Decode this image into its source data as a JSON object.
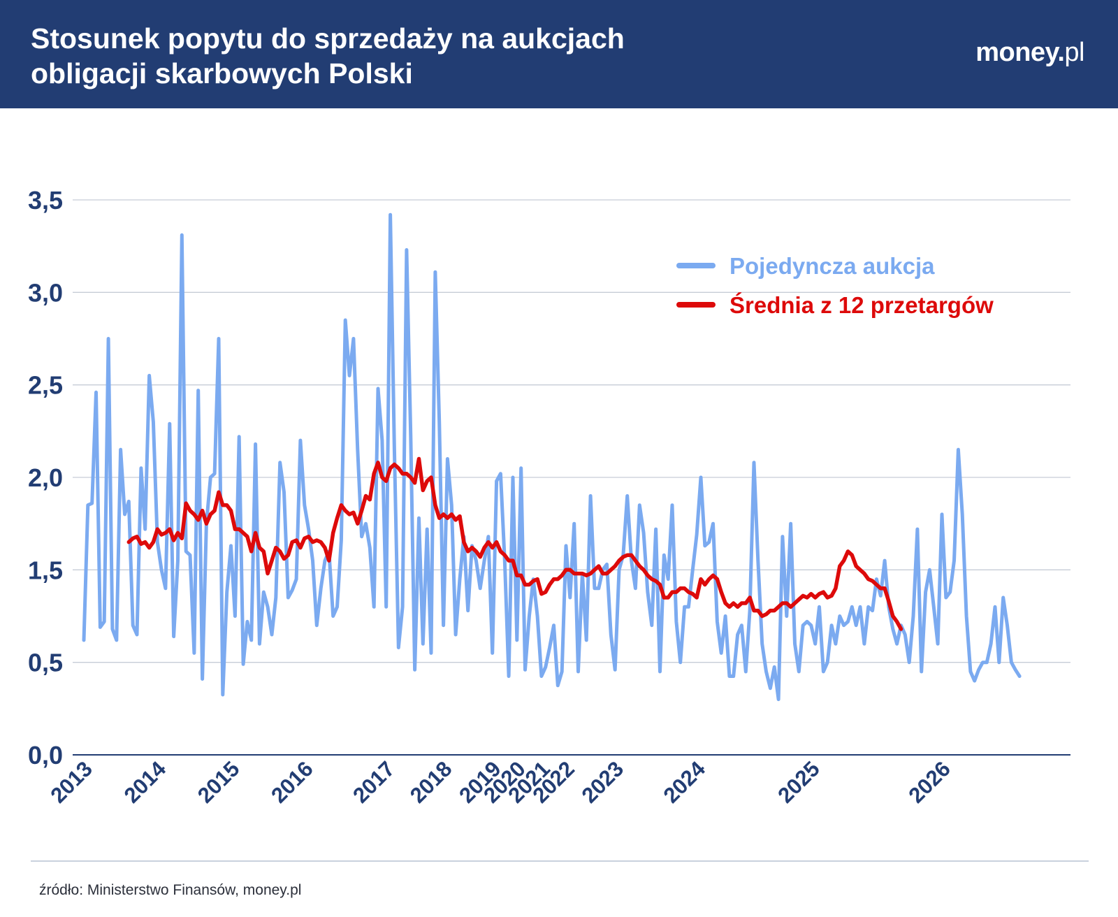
{
  "header": {
    "title_line1": "Stosunek popytu do sprzedaży na aukcjach",
    "title_line2": "obligacji skarbowych Polski",
    "logo_main": "money.",
    "logo_tld": "pl"
  },
  "footer": {
    "source": "źródło: Ministerstwo Finansów, money.pl"
  },
  "colors": {
    "header_bg": "#223d73",
    "single_auction": "#7baaf0",
    "average_12": "#dd0a0a",
    "axis_text": "#223d73"
  },
  "chart_data": {
    "type": "line",
    "title": "Stosunek popytu do sprzedaży na aukcjach obligacji skarbowych Polski",
    "xlabel": "",
    "ylabel": "",
    "ylim": [
      0,
      3.5
    ],
    "yticks": [
      "0,0",
      "0,5",
      "1,5",
      "2,0",
      "2,5",
      "3,0",
      "3,5"
    ],
    "ytick_values": [
      0,
      0.5,
      1.5,
      2.0,
      2.5,
      3.0,
      3.5
    ],
    "y_axis_note": "tick positions are evenly spaced; label at position 1 reads 0,5 although the position corresponds to 1,0",
    "grid": true,
    "legend_position": "top-right",
    "x_tick_labels": [
      "2013",
      "2014",
      "2015",
      "2016",
      "2017",
      "2018",
      "2019",
      "2020",
      "2021",
      "2022",
      "2023",
      "2024",
      "2025",
      "2026"
    ],
    "x_tick_positions": [
      0,
      18,
      36,
      54,
      74,
      88,
      100,
      106,
      112,
      118,
      130,
      150,
      178,
      210
    ],
    "x_index_max": 236,
    "series": [
      {
        "name": "Pojedyncza aukcja",
        "color": "#7baaf0",
        "values": [
          1.12,
          1.85,
          1.86,
          2.46,
          1.19,
          1.22,
          2.75,
          1.18,
          1.12,
          2.15,
          1.8,
          1.87,
          1.2,
          1.15,
          2.05,
          1.72,
          2.55,
          2.3,
          1.65,
          1.5,
          1.4,
          2.29,
          1.14,
          1.55,
          3.31,
          1.6,
          1.58,
          1.05,
          2.47,
          0.82,
          1.75,
          2.0,
          2.02,
          2.75,
          0.65,
          1.38,
          1.63,
          1.25,
          2.22,
          0.98,
          1.22,
          1.12,
          2.18,
          1.1,
          1.38,
          1.3,
          1.15,
          1.35,
          2.08,
          1.92,
          1.35,
          1.39,
          1.45,
          2.2,
          1.85,
          1.72,
          1.55,
          1.2,
          1.4,
          1.55,
          1.6,
          1.25,
          1.3,
          1.66,
          2.85,
          2.55,
          2.75,
          2.15,
          1.68,
          1.75,
          1.62,
          1.3,
          2.48,
          2.2,
          1.3,
          3.42,
          2.15,
          1.08,
          1.3,
          3.23,
          2.22,
          0.92,
          1.78,
          1.1,
          1.72,
          1.05,
          3.11,
          2.3,
          1.2,
          2.1,
          1.85,
          1.15,
          1.45,
          1.68,
          1.28,
          1.63,
          1.55,
          1.4,
          1.55,
          1.68,
          1.05,
          1.98,
          2.02,
          1.55,
          0.85,
          2.0,
          1.12,
          2.05,
          0.92,
          1.25,
          1.45,
          1.25,
          0.85,
          0.95,
          1.08,
          1.2,
          0.75,
          0.9,
          1.63,
          1.35,
          1.75,
          0.9,
          1.48,
          1.12,
          1.9,
          1.4,
          1.4,
          1.5,
          1.53,
          1.15,
          0.92,
          1.5,
          1.58,
          1.9,
          1.55,
          1.4,
          1.85,
          1.7,
          1.38,
          1.2,
          1.72,
          0.9,
          1.58,
          1.45,
          1.85,
          1.22,
          1.0,
          1.3,
          1.3,
          1.5,
          1.69,
          2.0,
          1.63,
          1.65,
          1.75,
          1.22,
          1.05,
          1.25,
          0.85,
          0.85,
          1.15,
          1.2,
          0.9,
          1.28,
          2.08,
          1.55,
          1.1,
          0.9,
          0.72,
          0.95,
          0.6,
          1.68,
          1.25,
          1.75,
          1.1,
          0.9,
          1.2,
          1.22,
          1.2,
          1.1,
          1.3,
          0.9,
          1.0,
          1.2,
          1.1,
          1.25,
          1.2,
          1.22,
          1.3,
          1.2,
          1.3,
          1.1,
          1.3,
          1.28,
          1.45,
          1.36,
          1.55,
          1.3,
          1.18,
          1.1,
          1.2,
          1.15,
          1.0,
          1.25,
          1.72,
          0.9,
          1.38,
          1.5,
          1.3,
          1.1,
          1.8,
          1.35,
          1.38,
          1.55,
          2.15,
          1.8,
          1.25,
          0.9,
          0.8,
          0.92,
          1.0,
          1.0,
          1.1,
          1.3,
          1.0,
          1.35,
          1.2,
          1.0,
          0.92,
          0.85
        ]
      },
      {
        "name": "Średnia z 12 przetargów",
        "color": "#dd0a0a",
        "start_index": 11,
        "values": [
          1.65,
          1.67,
          1.68,
          1.64,
          1.65,
          1.62,
          1.65,
          1.72,
          1.69,
          1.7,
          1.72,
          1.66,
          1.7,
          1.67,
          1.86,
          1.82,
          1.8,
          1.77,
          1.82,
          1.75,
          1.8,
          1.82,
          1.92,
          1.85,
          1.85,
          1.82,
          1.72,
          1.72,
          1.7,
          1.68,
          1.6,
          1.7,
          1.62,
          1.6,
          1.48,
          1.55,
          1.62,
          1.6,
          1.56,
          1.58,
          1.65,
          1.66,
          1.62,
          1.67,
          1.68,
          1.65,
          1.66,
          1.65,
          1.62,
          1.55,
          1.7,
          1.78,
          1.85,
          1.82,
          1.8,
          1.81,
          1.75,
          1.82,
          1.9,
          1.88,
          2.02,
          2.08,
          2.0,
          1.98,
          2.05,
          2.07,
          2.05,
          2.02,
          2.02,
          2.0,
          1.97,
          2.1,
          1.93,
          1.98,
          2.0,
          1.85,
          1.78,
          1.8,
          1.78,
          1.8,
          1.77,
          1.79,
          1.65,
          1.6,
          1.62,
          1.6,
          1.57,
          1.62,
          1.65,
          1.62,
          1.65,
          1.6,
          1.58,
          1.55,
          1.55,
          1.47,
          1.47,
          1.42,
          1.42,
          1.44,
          1.45,
          1.37,
          1.38,
          1.42,
          1.45,
          1.45,
          1.47,
          1.5,
          1.5,
          1.48,
          1.48,
          1.48,
          1.47,
          1.48,
          1.5,
          1.52,
          1.48,
          1.48,
          1.5,
          1.52,
          1.55,
          1.57,
          1.58,
          1.58,
          1.55,
          1.52,
          1.5,
          1.47,
          1.45,
          1.44,
          1.42,
          1.35,
          1.35,
          1.38,
          1.38,
          1.4,
          1.4,
          1.38,
          1.37,
          1.35,
          1.45,
          1.42,
          1.45,
          1.47,
          1.45,
          1.38,
          1.32,
          1.3,
          1.32,
          1.3,
          1.32,
          1.32,
          1.35,
          1.28,
          1.28,
          1.25,
          1.26,
          1.28,
          1.28,
          1.3,
          1.32,
          1.32,
          1.3,
          1.32,
          1.34,
          1.36,
          1.35,
          1.37,
          1.35,
          1.37,
          1.38,
          1.35,
          1.36,
          1.4,
          1.52,
          1.55,
          1.6,
          1.58,
          1.52,
          1.5,
          1.48,
          1.45,
          1.44,
          1.42,
          1.4,
          1.4,
          1.33,
          1.25,
          1.22,
          1.18
        ]
      }
    ]
  }
}
